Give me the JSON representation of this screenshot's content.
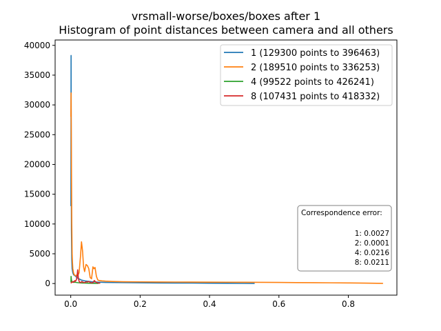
{
  "chart_data": {
    "type": "line",
    "title": "vrsmall-worse/boxes/boxes after 1",
    "subtitle": "Histogram of point distances between camera and all others",
    "xlabel": "",
    "ylabel": "",
    "xlim": [
      -0.045,
      0.94
    ],
    "ylim": [
      -1950,
      40900
    ],
    "x_ticks": [
      0.0,
      0.2,
      0.4,
      0.6,
      0.8
    ],
    "x_tick_labels": [
      "0.0",
      "0.2",
      "0.4",
      "0.6",
      "0.8"
    ],
    "y_ticks": [
      0,
      5000,
      10000,
      15000,
      20000,
      25000,
      30000,
      35000,
      40000
    ],
    "y_tick_labels": [
      "0",
      "5000",
      "10000",
      "15000",
      "20000",
      "25000",
      "30000",
      "35000",
      "40000"
    ],
    "grid": false,
    "legend_position": "top-right",
    "series": [
      {
        "name": "1 (129300 points to 396463)",
        "color": "#1f77b4",
        "x": [
          0.0005,
          0.001,
          0.0015,
          0.002,
          0.003,
          0.004,
          0.006,
          0.008,
          0.012,
          0.016,
          0.02,
          0.03,
          0.04,
          0.06,
          0.08,
          0.1,
          0.15,
          0.2,
          0.25,
          0.3,
          0.35,
          0.4,
          0.45,
          0.5,
          0.53
        ],
        "y": [
          13000,
          38300,
          20000,
          9000,
          4000,
          2500,
          1800,
          1500,
          1300,
          1100,
          900,
          600,
          450,
          300,
          230,
          190,
          150,
          120,
          100,
          90,
          80,
          60,
          40,
          20,
          10
        ]
      },
      {
        "name": "2 (189510 points to 336253)",
        "color": "#ff7f0e",
        "x": [
          0.0005,
          0.001,
          0.002,
          0.003,
          0.004,
          0.005,
          0.006,
          0.008,
          0.01,
          0.013,
          0.016,
          0.02,
          0.024,
          0.028,
          0.031,
          0.034,
          0.037,
          0.04,
          0.044,
          0.048,
          0.052,
          0.056,
          0.06,
          0.064,
          0.067,
          0.07,
          0.074,
          0.078,
          0.082,
          0.09,
          0.1,
          0.12,
          0.15,
          0.2,
          0.25,
          0.3,
          0.35,
          0.4,
          0.45,
          0.5,
          0.55,
          0.6,
          0.65,
          0.7,
          0.75,
          0.8,
          0.85,
          0.9
        ],
        "y": [
          28000,
          32000,
          20000,
          10000,
          5000,
          3500,
          2500,
          1800,
          1500,
          1300,
          1400,
          1300,
          1800,
          4500,
          7000,
          5500,
          2800,
          2000,
          3200,
          3000,
          2500,
          1000,
          800,
          2800,
          2500,
          2700,
          1200,
          600,
          500,
          450,
          400,
          350,
          300,
          280,
          260,
          250,
          240,
          230,
          220,
          210,
          200,
          180,
          160,
          140,
          120,
          100,
          70,
          30
        ]
      },
      {
        "name": "4 (99522 points to 426241)",
        "color": "#2ca02c",
        "x": [
          0.0005,
          0.001,
          0.002,
          0.004,
          0.006,
          0.008,
          0.012,
          0.016,
          0.02,
          0.025,
          0.03,
          0.035,
          0.04,
          0.05,
          0.06,
          0.07,
          0.08
        ],
        "y": [
          200,
          1200,
          600,
          300,
          250,
          200,
          220,
          180,
          150,
          120,
          100,
          90,
          80,
          60,
          40,
          30,
          20
        ]
      },
      {
        "name": "8 (107431 points to 418332)",
        "color": "#d62728",
        "x": [
          0.0005,
          0.002,
          0.004,
          0.006,
          0.008,
          0.01,
          0.012,
          0.014,
          0.016,
          0.018,
          0.02,
          0.022,
          0.024,
          0.026,
          0.028,
          0.032,
          0.036,
          0.04,
          0.044,
          0.048,
          0.052,
          0.056,
          0.06,
          0.064,
          0.068,
          0.072,
          0.076,
          0.08,
          0.085
        ],
        "y": [
          50,
          150,
          300,
          200,
          350,
          300,
          500,
          400,
          600,
          1100,
          2300,
          900,
          400,
          200,
          150,
          350,
          200,
          150,
          300,
          250,
          350,
          200,
          100,
          150,
          500,
          250,
          150,
          80,
          60
        ]
      }
    ],
    "annotation": {
      "title": "Correspondence error:",
      "lines": [
        "1: 0.0027",
        "2: 0.0001",
        "4: 0.0216",
        "8: 0.0211"
      ]
    }
  }
}
